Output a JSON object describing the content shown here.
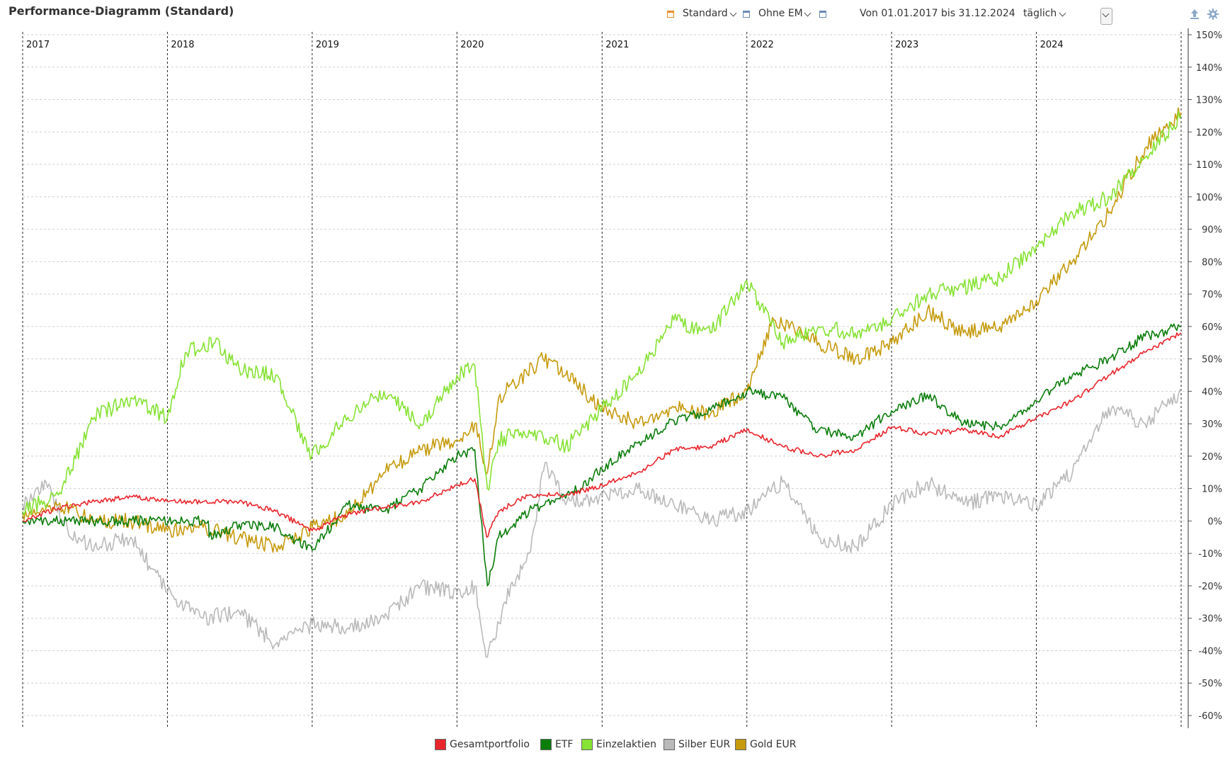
{
  "title": "Performance-Diagramm (Standard)",
  "toolbar": {
    "view_label": "Standard",
    "em_label": "Ohne EM",
    "range_label": "Von 01.01.2017 bis 31.12.2024",
    "interval_label": "täglich",
    "icons": [
      "calendar-icon",
      "calendar-icon",
      "calendar-icon",
      "upload-icon",
      "gear-icon"
    ]
  },
  "colors": {
    "Gesamtportfolio": "#e8252b",
    "ETF": "#0b7d0b",
    "Einzelaktien": "#86e233",
    "Silber EUR": "#b9b9b9",
    "Gold EUR": "#c59a0c",
    "accent": "#e98a2a"
  },
  "chart_data": {
    "type": "line",
    "title": "Performance-Diagramm (Standard)",
    "x_unit": "date",
    "xlim": [
      "2017-01-01",
      "2024-12-31"
    ],
    "year_labels": [
      "2017",
      "2018",
      "2019",
      "2020",
      "2021",
      "2022",
      "2023",
      "2024"
    ],
    "ylim": [
      -60,
      150
    ],
    "yticks": [
      150,
      140,
      130,
      120,
      110,
      100,
      90,
      80,
      70,
      60,
      50,
      40,
      30,
      20,
      10,
      0,
      -10,
      -20,
      -30,
      -40,
      -50,
      -60
    ],
    "y_unit": "%",
    "grid": true,
    "legend_position": "bottom-center",
    "series": [
      {
        "name": "Gesamtportfolio",
        "points": [
          [
            "2017-01-01",
            0
          ],
          [
            "2017-04-01",
            4
          ],
          [
            "2017-07-01",
            6
          ],
          [
            "2017-10-01",
            7.5
          ],
          [
            "2018-01-01",
            6
          ],
          [
            "2018-04-01",
            6
          ],
          [
            "2018-07-01",
            6
          ],
          [
            "2018-10-01",
            3
          ],
          [
            "2019-01-01",
            -3
          ],
          [
            "2019-04-01",
            2
          ],
          [
            "2019-07-01",
            4
          ],
          [
            "2019-10-01",
            6
          ],
          [
            "2020-01-01",
            11
          ],
          [
            "2020-02-15",
            13
          ],
          [
            "2020-03-16",
            -5
          ],
          [
            "2020-04-15",
            3
          ],
          [
            "2020-07-01",
            8
          ],
          [
            "2020-10-01",
            8
          ],
          [
            "2021-01-01",
            11
          ],
          [
            "2021-04-01",
            15
          ],
          [
            "2021-07-01",
            22
          ],
          [
            "2021-10-01",
            23
          ],
          [
            "2022-01-01",
            28
          ],
          [
            "2022-04-01",
            23
          ],
          [
            "2022-07-01",
            20
          ],
          [
            "2022-10-01",
            22
          ],
          [
            "2023-01-01",
            29
          ],
          [
            "2023-04-01",
            27
          ],
          [
            "2023-07-01",
            28
          ],
          [
            "2023-10-01",
            26
          ],
          [
            "2024-01-01",
            32
          ],
          [
            "2024-04-01",
            37
          ],
          [
            "2024-07-01",
            45
          ],
          [
            "2024-10-01",
            52
          ],
          [
            "2024-12-31",
            58
          ]
        ]
      },
      {
        "name": "ETF",
        "points": [
          [
            "2017-01-01",
            0
          ],
          [
            "2018-04-14",
            0
          ],
          [
            "2018-04-16",
            -5
          ],
          [
            "2018-07-01",
            -1
          ],
          [
            "2018-10-01",
            -2
          ],
          [
            "2019-01-01",
            -9
          ],
          [
            "2019-04-01",
            5
          ],
          [
            "2019-07-01",
            3
          ],
          [
            "2019-10-01",
            10
          ],
          [
            "2020-01-01",
            20
          ],
          [
            "2020-02-15",
            22
          ],
          [
            "2020-03-18",
            -20
          ],
          [
            "2020-04-15",
            -5
          ],
          [
            "2020-07-01",
            3
          ],
          [
            "2020-10-01",
            7
          ],
          [
            "2021-01-01",
            16
          ],
          [
            "2021-04-01",
            24
          ],
          [
            "2021-07-01",
            31
          ],
          [
            "2021-10-01",
            34
          ],
          [
            "2022-01-01",
            40
          ],
          [
            "2022-04-01",
            38
          ],
          [
            "2022-07-01",
            28
          ],
          [
            "2022-10-01",
            26
          ],
          [
            "2023-01-01",
            34
          ],
          [
            "2023-04-01",
            39
          ],
          [
            "2023-07-01",
            30
          ],
          [
            "2023-10-01",
            29
          ],
          [
            "2024-01-01",
            37
          ],
          [
            "2024-04-01",
            45
          ],
          [
            "2024-07-01",
            50
          ],
          [
            "2024-10-01",
            57
          ],
          [
            "2024-12-31",
            60
          ]
        ]
      },
      {
        "name": "Einzelaktien",
        "points": [
          [
            "2017-01-01",
            3
          ],
          [
            "2017-04-01",
            8
          ],
          [
            "2017-07-01",
            32
          ],
          [
            "2017-10-01",
            38
          ],
          [
            "2018-01-01",
            32
          ],
          [
            "2018-02-15",
            52
          ],
          [
            "2018-05-01",
            55
          ],
          [
            "2018-07-01",
            47
          ],
          [
            "2018-10-01",
            45
          ],
          [
            "2018-12-31",
            20
          ],
          [
            "2019-04-01",
            32
          ],
          [
            "2019-07-01",
            40
          ],
          [
            "2019-10-01",
            30
          ],
          [
            "2020-01-01",
            45
          ],
          [
            "2020-02-15",
            48
          ],
          [
            "2020-03-18",
            10
          ],
          [
            "2020-04-15",
            25
          ],
          [
            "2020-07-01",
            28
          ],
          [
            "2020-10-01",
            23
          ],
          [
            "2021-01-01",
            35
          ],
          [
            "2021-04-01",
            45
          ],
          [
            "2021-07-01",
            62
          ],
          [
            "2021-10-01",
            58
          ],
          [
            "2022-01-01",
            74
          ],
          [
            "2022-04-01",
            55
          ],
          [
            "2022-07-01",
            60
          ],
          [
            "2022-10-01",
            58
          ],
          [
            "2023-01-01",
            62
          ],
          [
            "2023-04-01",
            70
          ],
          [
            "2023-07-01",
            72
          ],
          [
            "2023-10-01",
            75
          ],
          [
            "2024-01-01",
            85
          ],
          [
            "2024-04-01",
            95
          ],
          [
            "2024-07-01",
            100
          ],
          [
            "2024-10-01",
            112
          ],
          [
            "2024-12-31",
            125
          ]
        ]
      },
      {
        "name": "Silber EUR",
        "points": [
          [
            "2017-01-01",
            5
          ],
          [
            "2017-03-01",
            12
          ],
          [
            "2017-05-01",
            -5
          ],
          [
            "2017-07-01",
            -8
          ],
          [
            "2017-10-01",
            -5
          ],
          [
            "2018-01-01",
            -22
          ],
          [
            "2018-04-01",
            -30
          ],
          [
            "2018-07-01",
            -28
          ],
          [
            "2018-10-01",
            -38
          ],
          [
            "2019-01-01",
            -32
          ],
          [
            "2019-04-01",
            -33
          ],
          [
            "2019-07-01",
            -30
          ],
          [
            "2019-10-01",
            -20
          ],
          [
            "2020-01-01",
            -22
          ],
          [
            "2020-02-15",
            -20
          ],
          [
            "2020-03-18",
            -42
          ],
          [
            "2020-05-01",
            -25
          ],
          [
            "2020-07-01",
            -10
          ],
          [
            "2020-08-10",
            18
          ],
          [
            "2020-10-01",
            5
          ],
          [
            "2021-01-01",
            8
          ],
          [
            "2021-04-01",
            10
          ],
          [
            "2021-07-01",
            5
          ],
          [
            "2021-10-01",
            0
          ],
          [
            "2022-01-01",
            3
          ],
          [
            "2022-04-01",
            12
          ],
          [
            "2022-07-01",
            -5
          ],
          [
            "2022-10-01",
            -8
          ],
          [
            "2023-01-01",
            5
          ],
          [
            "2023-04-01",
            12
          ],
          [
            "2023-07-01",
            5
          ],
          [
            "2023-10-01",
            8
          ],
          [
            "2024-01-01",
            5
          ],
          [
            "2024-04-01",
            15
          ],
          [
            "2024-07-01",
            35
          ],
          [
            "2024-10-01",
            30
          ],
          [
            "2024-12-31",
            40
          ]
        ]
      },
      {
        "name": "Gold EUR",
        "points": [
          [
            "2017-01-01",
            2
          ],
          [
            "2017-04-01",
            5
          ],
          [
            "2017-07-01",
            0
          ],
          [
            "2017-10-01",
            0
          ],
          [
            "2018-01-01",
            -3
          ],
          [
            "2018-04-01",
            -2
          ],
          [
            "2018-07-01",
            -5
          ],
          [
            "2018-10-01",
            -8
          ],
          [
            "2019-01-01",
            -2
          ],
          [
            "2019-04-01",
            2
          ],
          [
            "2019-07-01",
            15
          ],
          [
            "2019-10-01",
            22
          ],
          [
            "2020-01-01",
            25
          ],
          [
            "2020-02-15",
            30
          ],
          [
            "2020-03-18",
            15
          ],
          [
            "2020-04-15",
            38
          ],
          [
            "2020-08-05",
            50
          ],
          [
            "2020-10-01",
            45
          ],
          [
            "2021-01-01",
            35
          ],
          [
            "2021-04-01",
            30
          ],
          [
            "2021-07-01",
            35
          ],
          [
            "2021-10-01",
            33
          ],
          [
            "2022-01-01",
            40
          ],
          [
            "2022-03-10",
            62
          ],
          [
            "2022-07-01",
            55
          ],
          [
            "2022-10-01",
            50
          ],
          [
            "2023-01-01",
            55
          ],
          [
            "2023-04-01",
            65
          ],
          [
            "2023-07-01",
            58
          ],
          [
            "2023-10-01",
            60
          ],
          [
            "2024-01-01",
            68
          ],
          [
            "2024-04-01",
            80
          ],
          [
            "2024-07-01",
            95
          ],
          [
            "2024-10-01",
            115
          ],
          [
            "2024-12-31",
            126
          ]
        ]
      }
    ]
  }
}
